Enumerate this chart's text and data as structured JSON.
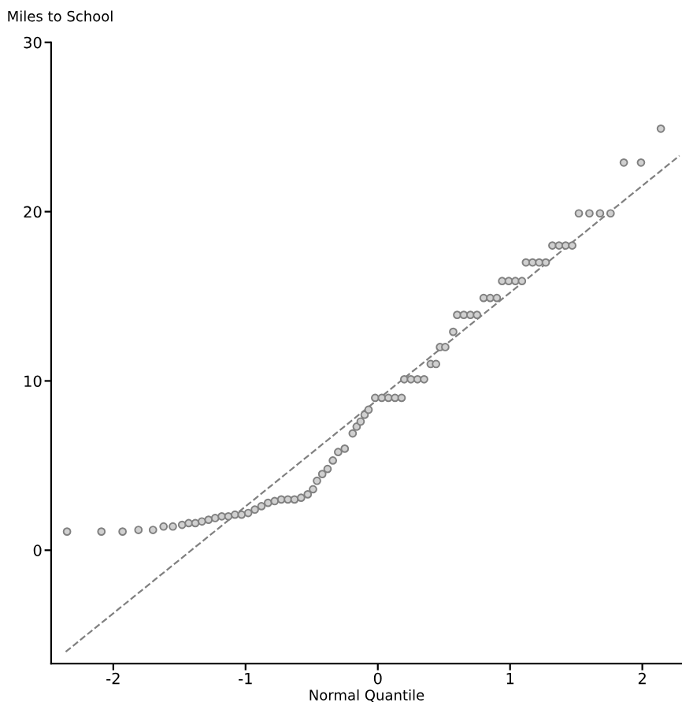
{
  "chart_data": {
    "type": "scatter",
    "ylabel": "Miles to School",
    "xlabel": "Normal Quantile",
    "xlim": [
      -2.47,
      2.3
    ],
    "ylim": [
      -6.7,
      30
    ],
    "xticks": [
      -2,
      -1,
      0,
      1,
      2
    ],
    "yticks": [
      0,
      10,
      20,
      30
    ],
    "grid": false,
    "series": [
      {
        "color": "#808080",
        "marker": "circle",
        "x": [
          -2.35,
          -2.09,
          -1.93,
          -1.81,
          -1.7,
          -1.62,
          -1.55,
          -1.48,
          -1.43,
          -1.38,
          -1.33,
          -1.28,
          -1.23,
          -1.18,
          -1.13,
          -1.08,
          -1.03,
          -0.98,
          -0.93,
          -0.88,
          -0.83,
          -0.78,
          -0.73,
          -0.68,
          -0.63,
          -0.58,
          -0.53,
          -0.49,
          -0.46,
          -0.42,
          -0.38,
          -0.34,
          -0.3,
          -0.25,
          -0.19,
          -0.16,
          -0.13,
          -0.1,
          -0.07,
          -0.02,
          0.03,
          0.08,
          0.13,
          0.18,
          0.2,
          0.25,
          0.3,
          0.35,
          0.4,
          0.44,
          0.47,
          0.51,
          0.57,
          0.6,
          0.65,
          0.7,
          0.75,
          0.8,
          0.85,
          0.9,
          0.94,
          0.99,
          1.04,
          1.09,
          1.12,
          1.17,
          1.22,
          1.27,
          1.32,
          1.37,
          1.42,
          1.47,
          1.52,
          1.6,
          1.68,
          1.76,
          1.86,
          1.99,
          2.14
        ],
        "values": [
          1.1,
          1.1,
          1.1,
          1.2,
          1.2,
          1.4,
          1.4,
          1.5,
          1.6,
          1.6,
          1.7,
          1.8,
          1.9,
          2.0,
          2.0,
          2.1,
          2.1,
          2.2,
          2.4,
          2.6,
          2.8,
          2.9,
          3.0,
          3.0,
          3.0,
          3.1,
          3.3,
          3.6,
          4.1,
          4.5,
          4.8,
          5.3,
          5.8,
          6.0,
          6.9,
          7.3,
          7.6,
          8.0,
          8.3,
          9.0,
          9.0,
          9.0,
          9.0,
          9.0,
          10.1,
          10.1,
          10.1,
          10.1,
          11.0,
          11.0,
          12.0,
          12.0,
          12.9,
          13.9,
          13.9,
          13.9,
          13.9,
          14.9,
          14.9,
          14.9,
          15.9,
          15.9,
          15.9,
          15.9,
          17.0,
          17.0,
          17.0,
          17.0,
          18.0,
          18.0,
          18.0,
          18.0,
          19.9,
          19.9,
          19.9,
          19.9,
          22.9,
          22.9,
          24.9
        ]
      },
      {
        "type": "line",
        "color": "#808080",
        "line_style": "dashed",
        "x": [
          -2.36,
          2.28
        ],
        "values": [
          -6.0,
          23.3
        ]
      }
    ]
  }
}
